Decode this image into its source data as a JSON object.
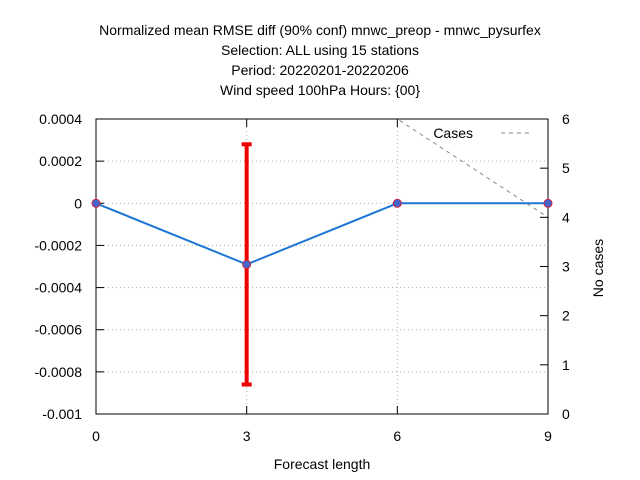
{
  "chart_data": {
    "type": "line",
    "title_lines": [
      "Normalized mean RMSE diff (90% conf) mnwc_preop - mnwc_pysurfex",
      "Selection: ALL using    15 stations",
      "Period: 20220201-20220206",
      "Wind speed 100hPa   Hours: {00}"
    ],
    "xlabel": "Forecast length",
    "ylabel": "",
    "y2label": "No cases",
    "x_ticks": [
      0,
      3,
      6,
      9
    ],
    "xlim": [
      0,
      9
    ],
    "y_ticks": [
      "0.0004",
      "0.0002",
      "0",
      "-0.0002",
      "-0.0004",
      "-0.0006",
      "-0.0008",
      "-0.001"
    ],
    "ylim": [
      -0.001,
      0.0004
    ],
    "y2_ticks": [
      0,
      1,
      2,
      3,
      4,
      5,
      6
    ],
    "y2lim": [
      0,
      6
    ],
    "grid": true,
    "series": [
      {
        "x": [
          0,
          3,
          6,
          9
        ],
        "values": [
          0,
          -0.00029,
          0,
          0
        ],
        "color": "#1f77d4",
        "marker_color": "#4466cc"
      }
    ],
    "error_bars": [
      {
        "x": 3,
        "low": -0.00086,
        "high": 0.00028,
        "color": "#ee0000"
      }
    ],
    "cases_series": {
      "name": "Cases",
      "x": [
        0,
        3,
        6,
        9
      ],
      "values": [
        6,
        6,
        6,
        4
      ],
      "color": "#888888",
      "style": "dashed"
    },
    "legend_position": "top-right"
  }
}
